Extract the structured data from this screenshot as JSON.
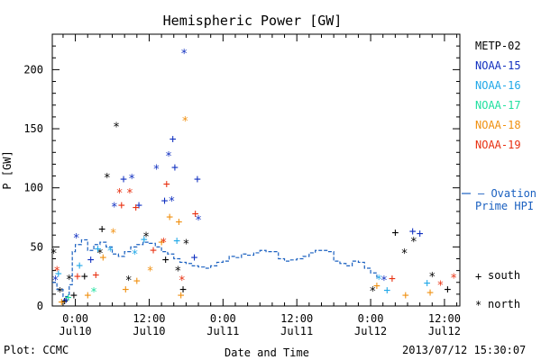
{
  "chart_data": {
    "type": "scatter",
    "title": "Hemispheric Power [GW]",
    "ylabel": "P [GW]",
    "xlabel": "Date and Time",
    "xlim": [
      "2013-07-09T20:15",
      "2013-07-12T14:30"
    ],
    "ylim": [
      0,
      230
    ],
    "yticks": [
      0,
      50,
      100,
      150,
      200
    ],
    "xticks": [
      {
        "x": "2013-07-10T00:00",
        "label": "0:00",
        "sublabel": "Jul10"
      },
      {
        "x": "2013-07-10T12:00",
        "label": "12:00",
        "sublabel": "Jul10"
      },
      {
        "x": "2013-07-11T00:00",
        "label": "0:00",
        "sublabel": "Jul11"
      },
      {
        "x": "2013-07-11T12:00",
        "label": "12:00",
        "sublabel": "Jul11"
      },
      {
        "x": "2013-07-12T00:00",
        "label": "0:00",
        "sublabel": "Jul12"
      },
      {
        "x": "2013-07-12T12:00",
        "label": "12:00",
        "sublabel": "Jul12"
      }
    ],
    "legend": {
      "placement": "right",
      "satellites": [
        {
          "name": "METP-02",
          "color": "#000000"
        },
        {
          "name": "NOAA-15",
          "color": "#1030c0"
        },
        {
          "name": "NOAA-16",
          "color": "#20a8e8"
        },
        {
          "name": "NOAA-17",
          "color": "#20e0a0"
        },
        {
          "name": "NOAA-18",
          "color": "#f09010"
        },
        {
          "name": "NOAA-19",
          "color": "#e83010"
        }
      ],
      "ovation_label_line1": "— Ovation",
      "ovation_label_line2": "Prime HPI",
      "south_symbol": "+",
      "south_label": "south",
      "north_symbol": "*",
      "north_label": "north"
    },
    "ovation_color": "#1a60c0",
    "ovation": [
      [
        "2013-07-09T20:15",
        20
      ],
      [
        "2013-07-09T21:00",
        14
      ],
      [
        "2013-07-09T22:00",
        8
      ],
      [
        "2013-07-09T23:00",
        18
      ],
      [
        "2013-07-09T23:30",
        46
      ],
      [
        "2013-07-10T00:00",
        52
      ],
      [
        "2013-07-10T01:00",
        56
      ],
      [
        "2013-07-10T02:00",
        47
      ],
      [
        "2013-07-10T03:00",
        52
      ],
      [
        "2013-07-10T04:00",
        54
      ],
      [
        "2013-07-10T05:00",
        50
      ],
      [
        "2013-07-10T06:00",
        44
      ],
      [
        "2013-07-10T07:00",
        42
      ],
      [
        "2013-07-10T08:00",
        46
      ],
      [
        "2013-07-10T09:00",
        50
      ],
      [
        "2013-07-10T10:00",
        52
      ],
      [
        "2013-07-10T11:00",
        54
      ],
      [
        "2013-07-10T12:00",
        53
      ],
      [
        "2013-07-10T13:00",
        50
      ],
      [
        "2013-07-10T14:00",
        46
      ],
      [
        "2013-07-10T15:00",
        44
      ],
      [
        "2013-07-10T16:00",
        40
      ],
      [
        "2013-07-10T17:00",
        37
      ],
      [
        "2013-07-10T18:00",
        36
      ],
      [
        "2013-07-10T19:00",
        34
      ],
      [
        "2013-07-10T20:00",
        33
      ],
      [
        "2013-07-10T21:00",
        32
      ],
      [
        "2013-07-10T22:00",
        34
      ],
      [
        "2013-07-10T23:00",
        37
      ],
      [
        "2013-07-11T00:00",
        38
      ],
      [
        "2013-07-11T01:00",
        42
      ],
      [
        "2013-07-11T02:00",
        41
      ],
      [
        "2013-07-11T03:00",
        44
      ],
      [
        "2013-07-11T04:00",
        43
      ],
      [
        "2013-07-11T05:00",
        45
      ],
      [
        "2013-07-11T06:00",
        47
      ],
      [
        "2013-07-11T07:00",
        46
      ],
      [
        "2013-07-11T08:00",
        46
      ],
      [
        "2013-07-11T09:00",
        40
      ],
      [
        "2013-07-11T10:00",
        38
      ],
      [
        "2013-07-11T11:00",
        39
      ],
      [
        "2013-07-11T12:00",
        40
      ],
      [
        "2013-07-11T13:00",
        42
      ],
      [
        "2013-07-11T14:00",
        45
      ],
      [
        "2013-07-11T15:00",
        47
      ],
      [
        "2013-07-11T16:00",
        47
      ],
      [
        "2013-07-11T17:00",
        46
      ],
      [
        "2013-07-11T18:00",
        38
      ],
      [
        "2013-07-11T19:00",
        36
      ],
      [
        "2013-07-11T20:00",
        34
      ],
      [
        "2013-07-11T21:00",
        38
      ],
      [
        "2013-07-11T22:00",
        37
      ],
      [
        "2013-07-11T23:00",
        32
      ],
      [
        "2013-07-12T00:00",
        28
      ],
      [
        "2013-07-12T01:00",
        24
      ]
    ],
    "points": [
      {
        "sat": "METP-02",
        "h": "n",
        "x": "2013-07-09T20:30",
        "y": 45
      },
      {
        "sat": "METP-02",
        "h": "n",
        "x": "2013-07-09T21:30",
        "y": 12
      },
      {
        "sat": "METP-02",
        "h": "s",
        "x": "2013-07-09T22:15",
        "y": 5
      },
      {
        "sat": "METP-02",
        "h": "n",
        "x": "2013-07-09T23:00",
        "y": 23
      },
      {
        "sat": "METP-02",
        "h": "s",
        "x": "2013-07-09T23:45",
        "y": 10
      },
      {
        "sat": "METP-02",
        "h": "s",
        "x": "2013-07-10T01:30",
        "y": 26
      },
      {
        "sat": "METP-02",
        "h": "n",
        "x": "2013-07-10T04:00",
        "y": 45
      },
      {
        "sat": "METP-02",
        "h": "n",
        "x": "2013-07-10T05:10",
        "y": 109
      },
      {
        "sat": "METP-02",
        "h": "n",
        "x": "2013-07-10T06:40",
        "y": 152
      },
      {
        "sat": "METP-02",
        "h": "s",
        "x": "2013-07-10T04:20",
        "y": 66
      },
      {
        "sat": "METP-02",
        "h": "n",
        "x": "2013-07-10T08:40",
        "y": 22
      },
      {
        "sat": "METP-02",
        "h": "n",
        "x": "2013-07-10T11:30",
        "y": 59
      },
      {
        "sat": "METP-02",
        "h": "s",
        "x": "2013-07-10T14:40",
        "y": 40
      },
      {
        "sat": "METP-02",
        "h": "n",
        "x": "2013-07-10T16:40",
        "y": 30
      },
      {
        "sat": "METP-02",
        "h": "n",
        "x": "2013-07-10T18:00",
        "y": 53
      },
      {
        "sat": "METP-02",
        "h": "s",
        "x": "2013-07-10T17:30",
        "y": 15
      },
      {
        "sat": "METP-02",
        "h": "n",
        "x": "2013-07-12T00:20",
        "y": 13
      },
      {
        "sat": "METP-02",
        "h": "s",
        "x": "2013-07-12T04:00",
        "y": 63
      },
      {
        "sat": "METP-02",
        "h": "n",
        "x": "2013-07-12T05:30",
        "y": 45
      },
      {
        "sat": "METP-02",
        "h": "n",
        "x": "2013-07-12T07:00",
        "y": 55
      },
      {
        "sat": "METP-02",
        "h": "n",
        "x": "2013-07-12T10:00",
        "y": 25
      },
      {
        "sat": "METP-02",
        "h": "s",
        "x": "2013-07-12T12:30",
        "y": 15
      },
      {
        "sat": "NOAA-15",
        "h": "n",
        "x": "2013-07-09T20:45",
        "y": 22
      },
      {
        "sat": "NOAA-15",
        "h": "s",
        "x": "2013-07-09T22:30",
        "y": 6
      },
      {
        "sat": "NOAA-15",
        "h": "n",
        "x": "2013-07-10T00:10",
        "y": 58
      },
      {
        "sat": "NOAA-15",
        "h": "s",
        "x": "2013-07-10T02:30",
        "y": 40
      },
      {
        "sat": "NOAA-15",
        "h": "n",
        "x": "2013-07-10T06:20",
        "y": 84
      },
      {
        "sat": "NOAA-15",
        "h": "s",
        "x": "2013-07-10T07:50",
        "y": 108
      },
      {
        "sat": "NOAA-15",
        "h": "n",
        "x": "2013-07-10T09:10",
        "y": 108
      },
      {
        "sat": "NOAA-15",
        "h": "s",
        "x": "2013-07-10T10:20",
        "y": 86
      },
      {
        "sat": "NOAA-15",
        "h": "n",
        "x": "2013-07-10T13:10",
        "y": 116
      },
      {
        "sat": "NOAA-15",
        "h": "s",
        "x": "2013-07-10T14:30",
        "y": 90
      },
      {
        "sat": "NOAA-15",
        "h": "n",
        "x": "2013-07-10T15:40",
        "y": 89
      },
      {
        "sat": "NOAA-15",
        "h": "s",
        "x": "2013-07-10T16:10",
        "y": 118
      },
      {
        "sat": "NOAA-15",
        "h": "n",
        "x": "2013-07-10T15:10",
        "y": 127
      },
      {
        "sat": "NOAA-15",
        "h": "s",
        "x": "2013-07-10T15:50",
        "y": 142
      },
      {
        "sat": "NOAA-15",
        "h": "n",
        "x": "2013-07-10T17:40",
        "y": 214
      },
      {
        "sat": "NOAA-15",
        "h": "s",
        "x": "2013-07-10T19:50",
        "y": 108
      },
      {
        "sat": "NOAA-15",
        "h": "n",
        "x": "2013-07-10T20:00",
        "y": 73
      },
      {
        "sat": "NOAA-15",
        "h": "s",
        "x": "2013-07-10T19:20",
        "y": 42
      },
      {
        "sat": "NOAA-15",
        "h": "s",
        "x": "2013-07-12T06:50",
        "y": 64
      },
      {
        "sat": "NOAA-15",
        "h": "s",
        "x": "2013-07-12T08:00",
        "y": 62
      },
      {
        "sat": "NOAA-15",
        "h": "n",
        "x": "2013-07-12T02:10",
        "y": 22
      },
      {
        "sat": "NOAA-16",
        "h": "s",
        "x": "2013-07-09T21:15",
        "y": 28
      },
      {
        "sat": "NOAA-16",
        "h": "s",
        "x": "2013-07-10T00:40",
        "y": 35
      },
      {
        "sat": "NOAA-16",
        "h": "s",
        "x": "2013-07-10T03:40",
        "y": 49
      },
      {
        "sat": "NOAA-16",
        "h": "n",
        "x": "2013-07-10T05:40",
        "y": 47
      },
      {
        "sat": "NOAA-16",
        "h": "n",
        "x": "2013-07-10T09:40",
        "y": 44
      },
      {
        "sat": "NOAA-16",
        "h": "s",
        "x": "2013-07-10T11:10",
        "y": 57
      },
      {
        "sat": "NOAA-16",
        "h": "s",
        "x": "2013-07-10T16:30",
        "y": 56
      },
      {
        "sat": "NOAA-16",
        "h": "n",
        "x": "2013-07-12T01:20",
        "y": 23
      },
      {
        "sat": "NOAA-16",
        "h": "s",
        "x": "2013-07-12T02:40",
        "y": 14
      },
      {
        "sat": "NOAA-16",
        "h": "s",
        "x": "2013-07-12T09:10",
        "y": 20
      },
      {
        "sat": "NOAA-17",
        "h": "s",
        "x": "2013-07-09T22:50",
        "y": 8
      },
      {
        "sat": "NOAA-17",
        "h": "n",
        "x": "2013-07-10T03:00",
        "y": 12
      },
      {
        "sat": "NOAA-18",
        "h": "s",
        "x": "2013-07-09T21:45",
        "y": 4
      },
      {
        "sat": "NOAA-18",
        "h": "s",
        "x": "2013-07-10T02:00",
        "y": 10
      },
      {
        "sat": "NOAA-18",
        "h": "s",
        "x": "2013-07-10T04:30",
        "y": 42
      },
      {
        "sat": "NOAA-18",
        "h": "n",
        "x": "2013-07-10T06:10",
        "y": 62
      },
      {
        "sat": "NOAA-18",
        "h": "s",
        "x": "2013-07-10T08:10",
        "y": 15
      },
      {
        "sat": "NOAA-18",
        "h": "s",
        "x": "2013-07-10T10:00",
        "y": 22
      },
      {
        "sat": "NOAA-18",
        "h": "n",
        "x": "2013-07-10T12:10",
        "y": 30
      },
      {
        "sat": "NOAA-18",
        "h": "s",
        "x": "2013-07-10T14:00",
        "y": 55
      },
      {
        "sat": "NOAA-18",
        "h": "s",
        "x": "2013-07-10T15:20",
        "y": 76
      },
      {
        "sat": "NOAA-18",
        "h": "s",
        "x": "2013-07-10T16:50",
        "y": 72
      },
      {
        "sat": "NOAA-18",
        "h": "n",
        "x": "2013-07-10T17:50",
        "y": 157
      },
      {
        "sat": "NOAA-18",
        "h": "s",
        "x": "2013-07-10T17:10",
        "y": 10
      },
      {
        "sat": "NOAA-18",
        "h": "s",
        "x": "2013-07-12T01:00",
        "y": 18
      },
      {
        "sat": "NOAA-18",
        "h": "s",
        "x": "2013-07-12T05:40",
        "y": 10
      },
      {
        "sat": "NOAA-18",
        "h": "s",
        "x": "2013-07-12T09:40",
        "y": 12
      },
      {
        "sat": "NOAA-19",
        "h": "n",
        "x": "2013-07-09T21:00",
        "y": 30
      },
      {
        "sat": "NOAA-19",
        "h": "s",
        "x": "2013-07-10T00:20",
        "y": 26
      },
      {
        "sat": "NOAA-19",
        "h": "s",
        "x": "2013-07-10T03:20",
        "y": 27
      },
      {
        "sat": "NOAA-19",
        "h": "n",
        "x": "2013-07-10T07:10",
        "y": 96
      },
      {
        "sat": "NOAA-19",
        "h": "s",
        "x": "2013-07-10T07:30",
        "y": 86
      },
      {
        "sat": "NOAA-19",
        "h": "n",
        "x": "2013-07-10T08:50",
        "y": 96
      },
      {
        "sat": "NOAA-19",
        "h": "s",
        "x": "2013-07-10T09:50",
        "y": 84
      },
      {
        "sat": "NOAA-19",
        "h": "s",
        "x": "2013-07-10T12:40",
        "y": 48
      },
      {
        "sat": "NOAA-19",
        "h": "n",
        "x": "2013-07-10T14:20",
        "y": 54
      },
      {
        "sat": "NOAA-19",
        "h": "s",
        "x": "2013-07-10T14:50",
        "y": 104
      },
      {
        "sat": "NOAA-19",
        "h": "s",
        "x": "2013-07-10T19:30",
        "y": 79
      },
      {
        "sat": "NOAA-19",
        "h": "n",
        "x": "2013-07-10T17:20",
        "y": 22
      },
      {
        "sat": "NOAA-19",
        "h": "s",
        "x": "2013-07-12T03:30",
        "y": 24
      },
      {
        "sat": "NOAA-19",
        "h": "n",
        "x": "2013-07-12T11:20",
        "y": 18
      },
      {
        "sat": "NOAA-19",
        "h": "n",
        "x": "2013-07-12T13:30",
        "y": 24
      }
    ]
  },
  "footer": {
    "plot_credit": "Plot: CCMC",
    "timestamp": "2013/07/12 15:30:07"
  }
}
